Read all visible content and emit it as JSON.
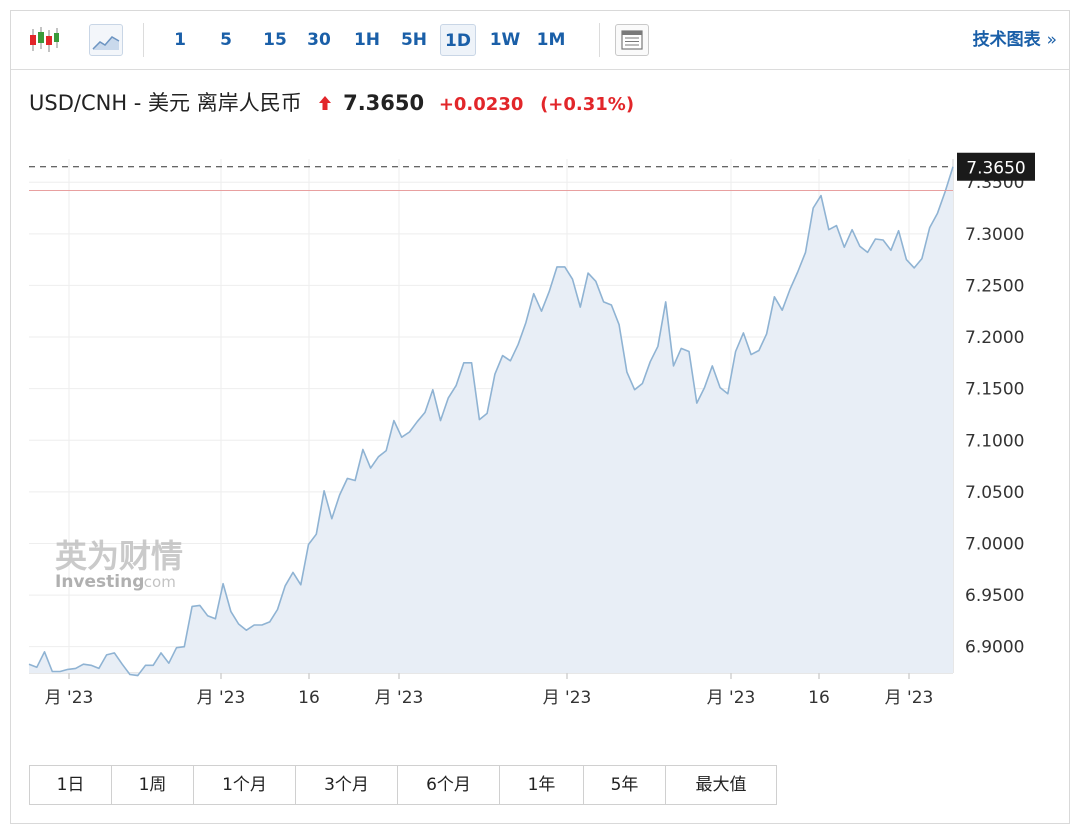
{
  "toolbar": {
    "intervals": [
      "1",
      "5",
      "15",
      "30",
      "1H",
      "5H",
      "1D",
      "1W",
      "1M"
    ],
    "active_interval": "1D",
    "tech_chart_label": "技术图表",
    "tech_chart_chevron": "»"
  },
  "quote": {
    "name": "USD/CNH - 美元 离岸人民币",
    "price": "7.3650",
    "change": "+0.0230",
    "change_pct": "(+0.31%)",
    "direction": "up"
  },
  "watermark": {
    "brand_cn": "英为财情",
    "brand_en": "Investing",
    "brand_domain": ".com"
  },
  "colors": {
    "accent_blue": "#1a5fa8",
    "up_red": "#e2262a",
    "line": "#8fb3d3",
    "area_fill": "#e8eef6",
    "prev_close_line": "#e8a0a0"
  },
  "chart_data": {
    "type": "area",
    "title": "",
    "xlabel": "",
    "ylabel": "",
    "ylim": [
      6.8745,
      7.3725
    ],
    "y_ticks": [
      "6.9000",
      "6.9500",
      "7.0000",
      "7.0500",
      "7.1000",
      "7.1500",
      "7.2000",
      "7.2500",
      "7.3000",
      "7.3500"
    ],
    "x_ticks": [
      "月 '23",
      "月 '23",
      "16",
      "月 '23",
      "月 '23",
      "月 '23",
      "16",
      "月 '23"
    ],
    "current_price_label": "7.3650",
    "prev_close": 7.342,
    "grid": true,
    "series": [
      {
        "values": [
          6.883,
          6.88,
          6.895,
          6.876,
          6.876,
          6.878,
          6.879,
          6.883,
          6.882,
          6.879,
          6.892,
          6.894,
          6.883,
          6.873,
          6.872,
          6.882,
          6.882,
          6.894,
          6.884,
          6.899,
          6.9,
          6.939,
          6.94,
          6.93,
          6.927,
          6.961,
          6.934,
          6.922,
          6.916,
          6.921,
          6.921,
          6.924,
          6.936,
          6.959,
          6.972,
          6.96,
          6.999,
          7.009,
          7.051,
          7.024,
          7.047,
          7.063,
          7.061,
          7.091,
          7.073,
          7.084,
          7.09,
          7.119,
          7.103,
          7.108,
          7.118,
          7.127,
          7.149,
          7.119,
          7.141,
          7.153,
          7.175,
          7.175,
          7.12,
          7.126,
          7.164,
          7.182,
          7.177,
          7.193,
          7.214,
          7.242,
          7.225,
          7.244,
          7.268,
          7.268,
          7.256,
          7.229,
          7.262,
          7.254,
          7.234,
          7.231,
          7.212,
          7.166,
          7.149,
          7.155,
          7.176,
          7.191,
          7.234,
          7.172,
          7.189,
          7.186,
          7.136,
          7.151,
          7.172,
          7.151,
          7.145,
          7.186,
          7.204,
          7.183,
          7.187,
          7.203,
          7.239,
          7.226,
          7.246,
          7.263,
          7.282,
          7.325,
          7.337,
          7.304,
          7.308,
          7.287,
          7.304,
          7.288,
          7.282,
          7.295,
          7.294,
          7.284,
          7.303,
          7.275,
          7.267,
          7.276,
          7.306,
          7.32,
          7.341,
          7.365
        ]
      }
    ]
  },
  "ranges": [
    "1日",
    "1周",
    "1个月",
    "3个月",
    "6个月",
    "1年",
    "5年",
    "最大值"
  ]
}
